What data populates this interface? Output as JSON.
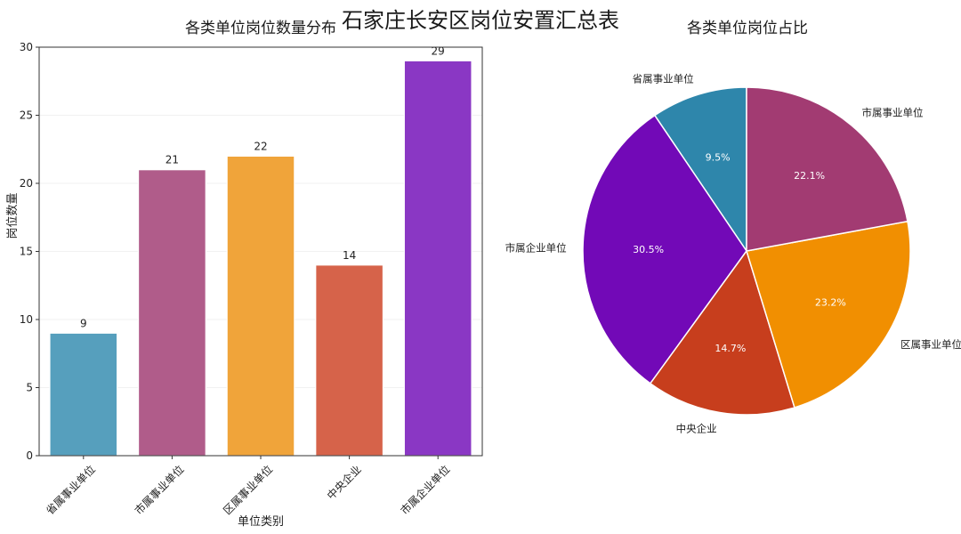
{
  "title": "石家庄长安区岗位安置汇总表",
  "chart_data": [
    {
      "type": "bar",
      "title": "各类单位岗位数量分布",
      "xlabel": "单位类别",
      "ylabel": "岗位数量",
      "categories": [
        "省属事业单位",
        "市属事业单位",
        "区属事业单位",
        "中央企业",
        "市属企业单位"
      ],
      "values": [
        9,
        21,
        22,
        14,
        29
      ],
      "colors": [
        "#569fbd",
        "#b05c8a",
        "#f0a43a",
        "#d6634a",
        "#8a37c4"
      ],
      "ylim": [
        0,
        30
      ],
      "yticks": [
        0,
        5,
        10,
        15,
        20,
        25,
        30
      ],
      "grid": true,
      "value_labels": true
    },
    {
      "type": "pie",
      "title": "各类单位岗位占比",
      "labels": [
        "省属事业单位",
        "市属企业单位",
        "中央企业",
        "区属事业单位",
        "市属事业单位"
      ],
      "values": [
        9,
        29,
        14,
        22,
        21
      ],
      "percent_labels": [
        "9.5%",
        "30.5%",
        "14.7%",
        "23.2%",
        "22.1%"
      ],
      "colors": [
        "#2e86ab",
        "#7209b7",
        "#c73e1d",
        "#f18f01",
        "#a23b72"
      ],
      "start_angle_deg": 90,
      "direction": "counterclockwise"
    }
  ]
}
